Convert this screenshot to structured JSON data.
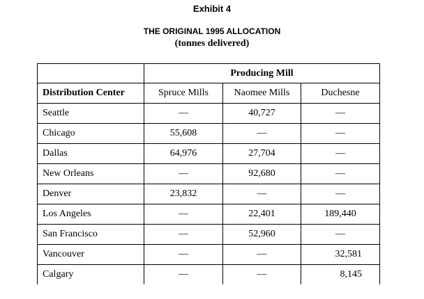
{
  "exhibit": "Exhibit 4",
  "title": "THE ORIGINAL 1995 ALLOCATION",
  "subtitle": "(tonnes delivered)",
  "table": {
    "group_header": "Producing Mill",
    "row_header": "Distribution Center",
    "mills": [
      "Spruce Mills",
      "Naomee Mills",
      "Duchesne"
    ],
    "rows": [
      {
        "center": "Seattle",
        "values": [
          "—",
          "40,727",
          "—"
        ]
      },
      {
        "center": "Chicago",
        "values": [
          "55,608",
          "—",
          "—"
        ]
      },
      {
        "center": "Dallas",
        "values": [
          "64,976",
          "27,704",
          "—"
        ]
      },
      {
        "center": "New Orleans",
        "values": [
          "—",
          "92,680",
          "—"
        ]
      },
      {
        "center": "Denver",
        "values": [
          "23,832",
          "—",
          "—"
        ]
      },
      {
        "center": "Los Angeles",
        "values": [
          "—",
          "22,401",
          "189,440"
        ]
      },
      {
        "center": "San Francisco",
        "values": [
          "—",
          "52,960",
          "—"
        ]
      },
      {
        "center": "Vancouver",
        "values": [
          "—",
          "—",
          "32,581"
        ]
      },
      {
        "center": "Calgary",
        "values": [
          "—",
          "—",
          "8,145"
        ]
      }
    ]
  }
}
